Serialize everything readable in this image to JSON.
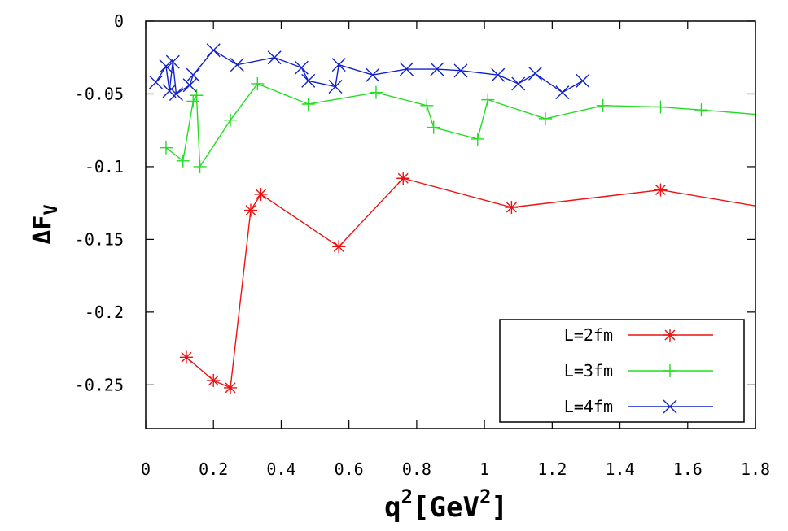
{
  "chart_data": {
    "type": "line",
    "title": "",
    "xlabel": {
      "base": "q",
      "sup": "2",
      "unit_open": "[GeV",
      "unit_sup": "2",
      "unit_close": "]"
    },
    "ylabel": {
      "prefix": "ΔF",
      "sub": "V"
    },
    "xlim": [
      0,
      1.8
    ],
    "ylim": [
      -0.28,
      0
    ],
    "xticks": [
      0,
      0.2,
      0.4,
      0.6,
      0.8,
      1,
      1.2,
      1.4,
      1.6,
      1.8
    ],
    "xtick_labels": [
      "0",
      "0.2",
      "0.4",
      "0.6",
      "0.8",
      "1",
      "1.2",
      "1.4",
      "1.6",
      "1.8"
    ],
    "yticks": [
      0,
      -0.05,
      -0.1,
      -0.15,
      -0.2,
      -0.25
    ],
    "ytick_labels": [
      "0",
      "-0.05",
      "-0.1",
      "-0.15",
      "-0.2",
      "-0.25"
    ],
    "legend_position": "bottom-right",
    "series": [
      {
        "name": "L=2fm",
        "color": "#ee1111",
        "marker": "asterisk",
        "x": [
          0.12,
          0.2,
          0.25,
          0.31,
          0.34,
          0.57,
          0.76,
          1.08,
          1.52,
          1.8
        ],
        "y": [
          -0.231,
          -0.247,
          -0.252,
          -0.13,
          -0.119,
          -0.155,
          -0.108,
          -0.128,
          -0.116,
          -0.127
        ]
      },
      {
        "name": "L=3fm",
        "color": "#22dd22",
        "marker": "plus",
        "x": [
          0.06,
          0.11,
          0.14,
          0.15,
          0.16,
          0.25,
          0.33,
          0.48,
          0.68,
          0.83,
          0.85,
          0.98,
          1.01,
          1.18,
          1.35,
          1.52,
          1.64,
          1.8
        ],
        "y": [
          -0.087,
          -0.096,
          -0.055,
          -0.051,
          -0.1,
          -0.068,
          -0.043,
          -0.057,
          -0.049,
          -0.058,
          -0.073,
          -0.081,
          -0.054,
          -0.067,
          -0.058,
          -0.059,
          -0.061,
          -0.064
        ],
        "note": "final point at 1.8 is the line exiting the plot edge"
      },
      {
        "name": "L=4fm",
        "color": "#1122cc",
        "marker": "cross",
        "x": [
          0.03,
          0.06,
          0.07,
          0.08,
          0.09,
          0.13,
          0.14,
          0.2,
          0.27,
          0.38,
          0.46,
          0.48,
          0.56,
          0.57,
          0.67,
          0.77,
          0.86,
          0.93,
          1.04,
          1.1,
          1.15,
          1.23,
          1.29
        ],
        "y": [
          -0.042,
          -0.031,
          -0.048,
          -0.028,
          -0.05,
          -0.044,
          -0.037,
          -0.02,
          -0.03,
          -0.025,
          -0.032,
          -0.041,
          -0.045,
          -0.03,
          -0.037,
          -0.033,
          -0.033,
          -0.034,
          -0.037,
          -0.043,
          -0.036,
          -0.049,
          -0.041
        ]
      }
    ]
  }
}
